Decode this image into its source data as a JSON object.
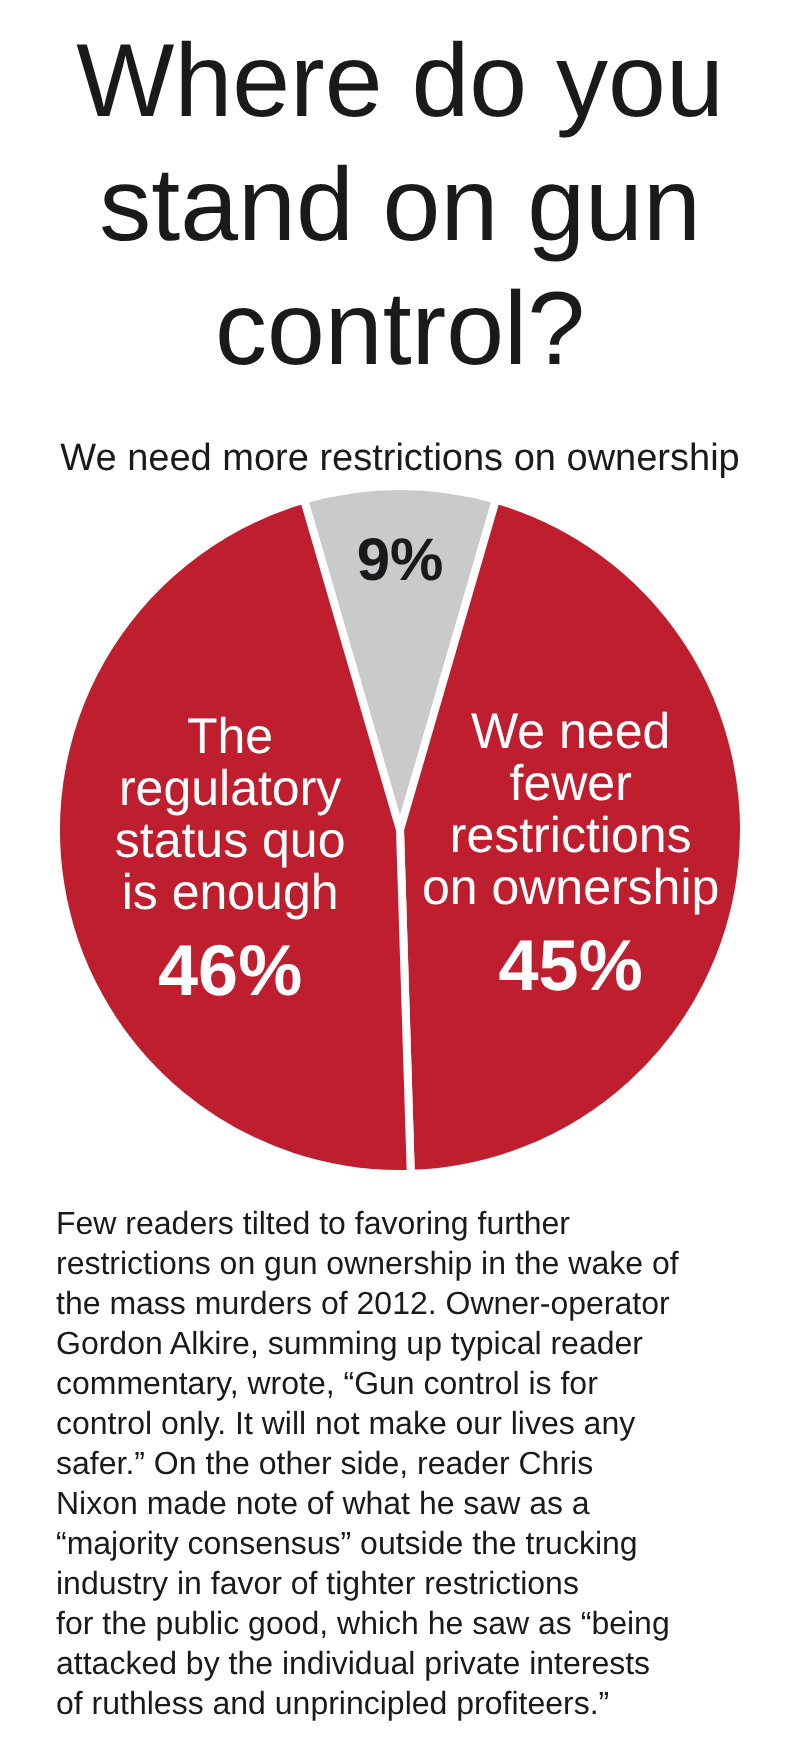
{
  "chart_data": {
    "type": "pie",
    "title": "Where do you stand on gun control?",
    "categories": [
      "We need more restrictions on ownership",
      "We need fewer restrictions on ownership",
      "The regulatory status quo is enough"
    ],
    "values": [
      9,
      45,
      46
    ],
    "colors": [
      "#c9cacc",
      "#be1e2d",
      "#be1e2d"
    ],
    "value_labels": [
      "9%",
      "45%",
      "46%"
    ],
    "annotations": [
      "Few readers tilted to favoring further restrictions on gun ownership in the wake of the mass murders of 2012. Owner-operator Gordon Alkire, summing up typical reader commentary, wrote, “Gun control is for control only. It will not make our lives any safer.” On the other side, reader Chris Nixon made note of what he saw as a “majority consensus” outside the trucking industry in favor of tighter restrictions for the public good, which he saw as “being attacked by the individual private interests of ruthless and unprincipled profiteers.”"
    ]
  }
}
